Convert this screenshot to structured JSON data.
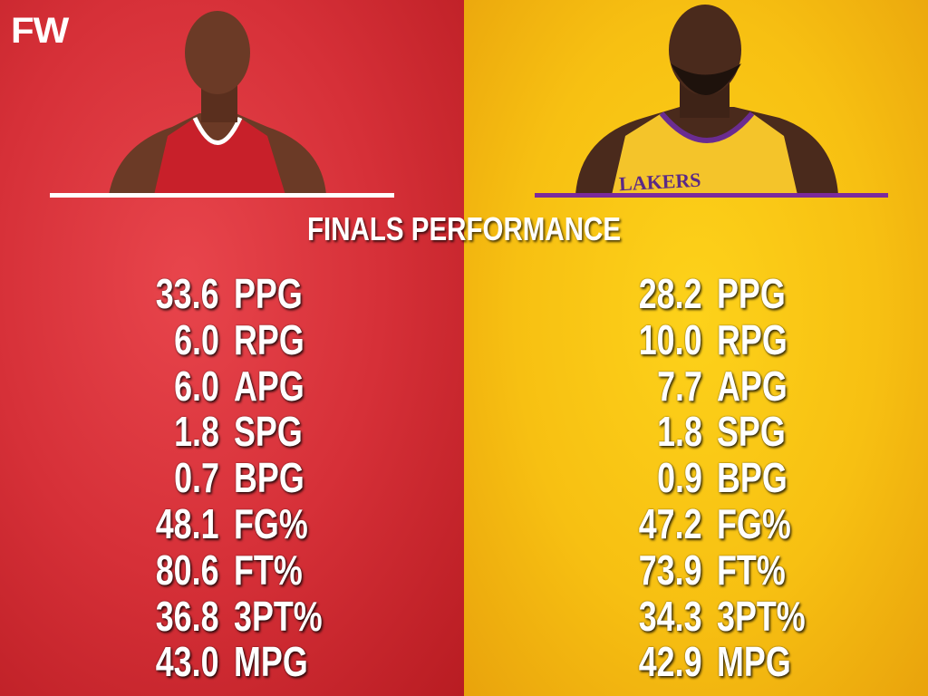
{
  "brand": {
    "logo": "FW"
  },
  "title": "FINALS PERFORMANCE",
  "colors": {
    "left_bg": "#d63038",
    "right_bg": "#f7c012",
    "left_line": "#ffffff",
    "right_line": "#7b2a9c",
    "text": "#ffffff"
  },
  "players": [
    {
      "side": "left",
      "jersey": "red",
      "stats": [
        {
          "value": "33.6",
          "label": "PPG"
        },
        {
          "value": "6.0",
          "label": "RPG"
        },
        {
          "value": "6.0",
          "label": "APG"
        },
        {
          "value": "1.8",
          "label": "SPG"
        },
        {
          "value": "0.7",
          "label": "BPG"
        },
        {
          "value": "48.1",
          "label": "FG%"
        },
        {
          "value": "80.6",
          "label": "FT%"
        },
        {
          "value": "36.8",
          "label": "3PT%"
        },
        {
          "value": "43.0",
          "label": "MPG"
        }
      ]
    },
    {
      "side": "right",
      "jersey": "gold",
      "jersey_text": "LAKERS",
      "stats": [
        {
          "value": "28.2",
          "label": "PPG"
        },
        {
          "value": "10.0",
          "label": "RPG"
        },
        {
          "value": "7.7",
          "label": "APG"
        },
        {
          "value": "1.8",
          "label": "SPG"
        },
        {
          "value": "0.9",
          "label": "BPG"
        },
        {
          "value": "47.2",
          "label": "FG%"
        },
        {
          "value": "73.9",
          "label": "FT%"
        },
        {
          "value": "34.3",
          "label": "3PT%"
        },
        {
          "value": "42.9",
          "label": "MPG"
        }
      ]
    }
  ]
}
